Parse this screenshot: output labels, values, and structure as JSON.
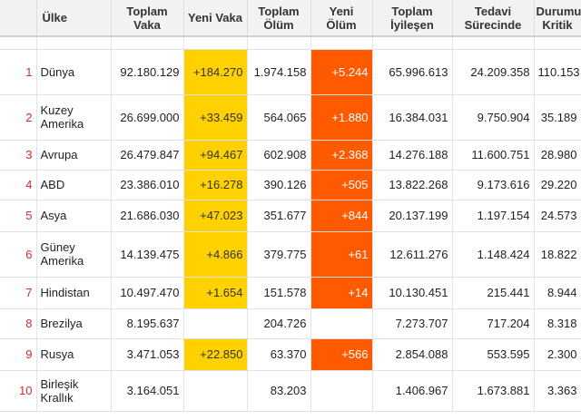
{
  "table": {
    "headers": {
      "country": "Ülke",
      "total_cases": "Toplam Vaka",
      "new_cases": "Yeni Vaka",
      "total_deaths": "Toplam Ölüm",
      "new_deaths": "Yeni Ölüm",
      "total_recovered": "Toplam İyileşen",
      "active": "Tedavi Sürecinde",
      "critical": "Durumu Kritik"
    },
    "rows": [
      {
        "rank": "1",
        "country": "Dünya",
        "total_cases": "92.180.129",
        "new_cases": "+184.270",
        "total_deaths": "1.974.158",
        "new_deaths": "+5.244",
        "total_recovered": "65.996.613",
        "active": "24.209.358",
        "critical": "110.153"
      },
      {
        "rank": "2",
        "country": "Kuzey Amerika",
        "total_cases": "26.699.000",
        "new_cases": "+33.459",
        "total_deaths": "564.065",
        "new_deaths": "+1.880",
        "total_recovered": "16.384.031",
        "active": "9.750.904",
        "critical": "35.189"
      },
      {
        "rank": "3",
        "country": "Avrupa",
        "total_cases": "26.479.847",
        "new_cases": "+94.467",
        "total_deaths": "602.908",
        "new_deaths": "+2.368",
        "total_recovered": "14.276.188",
        "active": "11.600.751",
        "critical": "28.980"
      },
      {
        "rank": "4",
        "country": "ABD",
        "total_cases": "23.386.010",
        "new_cases": "+16.278",
        "total_deaths": "390.126",
        "new_deaths": "+505",
        "total_recovered": "13.822.268",
        "active": "9.173.616",
        "critical": "29.220"
      },
      {
        "rank": "5",
        "country": "Asya",
        "total_cases": "21.686.030",
        "new_cases": "+47.023",
        "total_deaths": "351.677",
        "new_deaths": "+844",
        "total_recovered": "20.137.199",
        "active": "1.197.154",
        "critical": "24.573"
      },
      {
        "rank": "6",
        "country": "Güney Amerika",
        "total_cases": "14.139.475",
        "new_cases": "+4.866",
        "total_deaths": "379.775",
        "new_deaths": "+61",
        "total_recovered": "12.611.276",
        "active": "1.148.424",
        "critical": "18.822"
      },
      {
        "rank": "7",
        "country": "Hindistan",
        "total_cases": "10.497.470",
        "new_cases": "+1.654",
        "total_deaths": "151.578",
        "new_deaths": "+14",
        "total_recovered": "10.130.451",
        "active": "215.441",
        "critical": "8.944"
      },
      {
        "rank": "8",
        "country": "Brezilya",
        "total_cases": "8.195.637",
        "new_cases": "",
        "total_deaths": "204.726",
        "new_deaths": "",
        "total_recovered": "7.273.707",
        "active": "717.204",
        "critical": "8.318"
      },
      {
        "rank": "9",
        "country": "Rusya",
        "total_cases": "3.471.053",
        "new_cases": "+22.850",
        "total_deaths": "63.370",
        "new_deaths": "+566",
        "total_recovered": "2.854.088",
        "active": "553.595",
        "critical": "2.300"
      },
      {
        "rank": "10",
        "country": "Birleşik Krallık",
        "total_cases": "3.164.051",
        "new_cases": "",
        "total_deaths": "83.203",
        "new_deaths": "",
        "total_recovered": "1.406.967",
        "active": "1.673.881",
        "critical": "3.363"
      }
    ]
  },
  "colors": {
    "new_cases_highlight": "#ffd100",
    "new_deaths_highlight": "#ff5a00",
    "rank_number": "#d62b2b"
  }
}
